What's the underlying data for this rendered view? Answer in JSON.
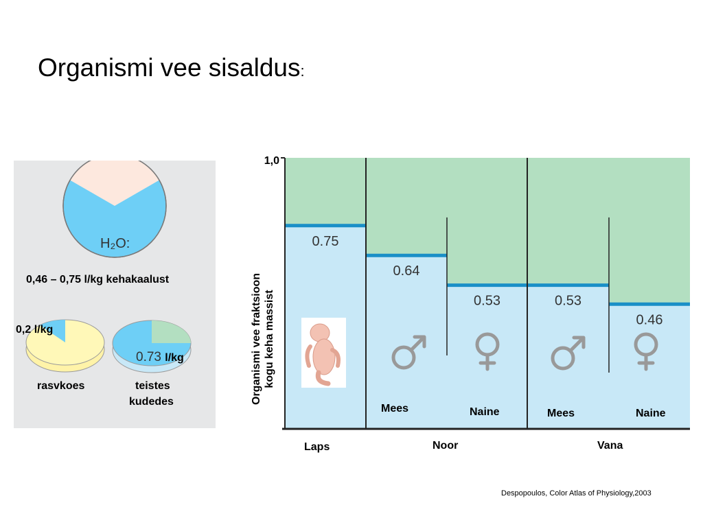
{
  "title": "Organismi vee sisaldus",
  "title_suffix": ":",
  "left_panel": {
    "pie_top": {
      "label": "H₂O:",
      "water_fraction": 0.75
    },
    "body_text": "0,46 – 0,75 l/kg kehakaalust",
    "fat_value": "0,2 l/kg",
    "fat_label": "rasvkoes",
    "other_value": "0.73",
    "other_unit": "l/kg",
    "other_label_line1": "teistes",
    "other_label_line2": "kudedes",
    "colors": {
      "water": "#6ecff6",
      "solids": "#fde8de",
      "fat": "#fff8b8",
      "tissue": "#b3dfc1"
    }
  },
  "chart_data": {
    "type": "bar",
    "ytick": "1,0",
    "ylabel_line1": "Organismi vee fraktsioon",
    "ylabel_line2": "kogu keha massist",
    "ylim": [
      0,
      1
    ],
    "groups": [
      "Laps",
      "Noor",
      "Vana"
    ],
    "bars": [
      {
        "group": "Laps",
        "sex": "",
        "value": 0.75,
        "label": "0.75"
      },
      {
        "group": "Noor",
        "sex": "Mees",
        "value": 0.64,
        "label": "0.64"
      },
      {
        "group": "Noor",
        "sex": "Naine",
        "value": 0.53,
        "label": "0.53"
      },
      {
        "group": "Vana",
        "sex": "Mees",
        "value": 0.53,
        "label": "0.53"
      },
      {
        "group": "Vana",
        "sex": "Naine",
        "value": 0.46,
        "label": "0.46"
      }
    ],
    "colors": {
      "water": "#c8e8f7",
      "remainder": "#b3dfc1",
      "level_line": "#1a8fc7",
      "symbol": "#999999"
    }
  },
  "source": "Despopoulos, Color Atlas of Physiology,2003"
}
